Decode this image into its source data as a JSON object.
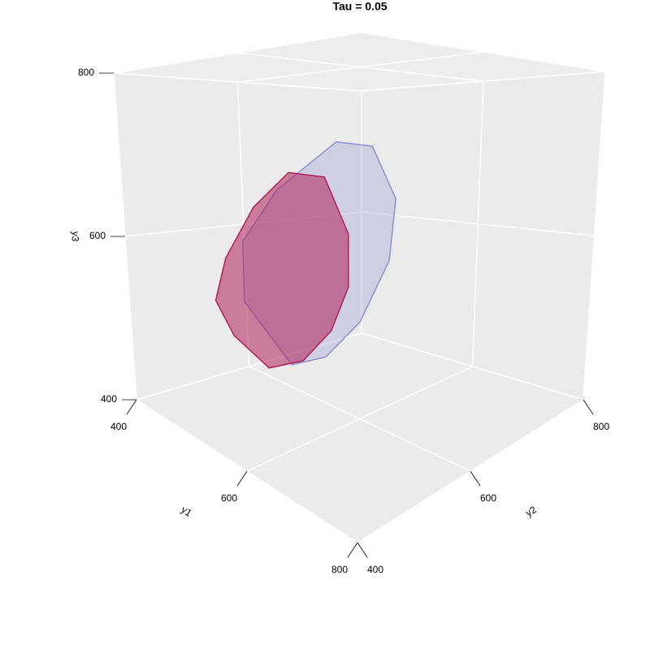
{
  "chart_data": {
    "type": "polytope3d",
    "title": "Tau = 0.05",
    "xlabel": "y1",
    "ylabel": "y2",
    "zlabel": "y3",
    "xlim": [
      400,
      800
    ],
    "ylim": [
      400,
      800
    ],
    "zlim": [
      400,
      800
    ],
    "xticks": [
      400,
      600,
      800
    ],
    "yticks": [
      400,
      600,
      800
    ],
    "zticks": [
      400,
      600,
      800
    ],
    "grid": true,
    "series": [
      {
        "color": "#8f8fd0",
        "x": [
          540,
          500,
          500,
          530,
          580,
          610,
          630,
          625,
          600,
          570
        ],
        "y": [
          540,
          500,
          500,
          530,
          580,
          610,
          630,
          625,
          600,
          570
        ],
        "z": [
          460,
          530,
          600,
          660,
          715,
          710,
          650,
          580,
          510,
          470
        ]
      },
      {
        "color": "#b0205a",
        "x": [
          520,
          490,
          475,
          485,
          510,
          540,
          570,
          590,
          590,
          575,
          550
        ],
        "y": [
          520,
          490,
          475,
          485,
          510,
          540,
          570,
          590,
          590,
          575,
          550
        ],
        "z": [
          455,
          490,
          530,
          580,
          640,
          680,
          675,
          610,
          550,
          500,
          465
        ]
      }
    ]
  }
}
